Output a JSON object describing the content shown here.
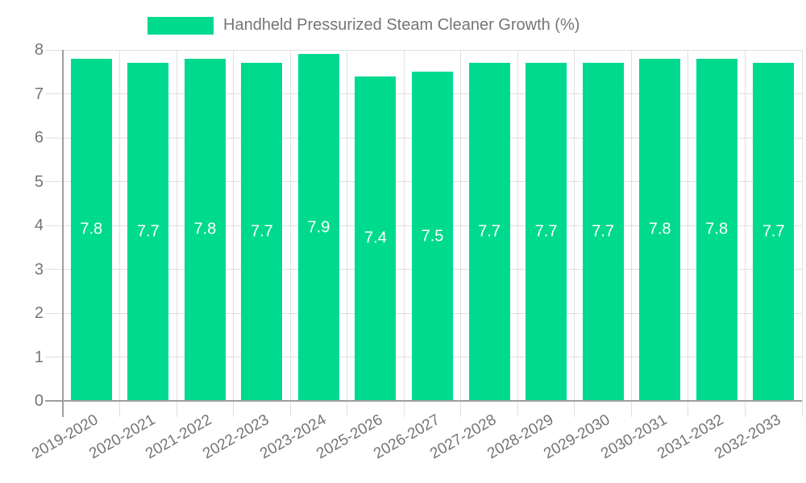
{
  "legend": {
    "label": "Handheld Pressurized Steam Cleaner Growth (%)"
  },
  "chart_data": {
    "type": "bar",
    "title": "Handheld Pressurized Steam Cleaner Growth (%)",
    "categories": [
      "2019-2020",
      "2020-2021",
      "2021-2022",
      "2022-2023",
      "2023-2024",
      "2025-2026",
      "2026-2027",
      "2027-2028",
      "2028-2029",
      "2029-2030",
      "2030-2031",
      "2031-2032",
      "2032-2033"
    ],
    "values": [
      7.8,
      7.7,
      7.8,
      7.7,
      7.9,
      7.4,
      7.5,
      7.7,
      7.7,
      7.7,
      7.8,
      7.8,
      7.7
    ],
    "value_labels": [
      "7.8",
      "7.7",
      "7.8",
      "7.7",
      "7.9",
      "7.4",
      "7.5",
      "7.7",
      "7.7",
      "7.7",
      "7.8",
      "7.8",
      "7.7"
    ],
    "xlabel": "",
    "ylabel": "",
    "ylim": [
      0,
      8
    ],
    "yticks": [
      0,
      1,
      2,
      3,
      4,
      5,
      6,
      7,
      8
    ],
    "grid": true,
    "legend_position": "top",
    "colors": {
      "bar": "#00DA8E",
      "value_label": "#ffffff",
      "axis_text": "#757575",
      "grid_line": "#e0e0e0",
      "axis_line": "#9e9e9e",
      "background": "#ffffff"
    }
  }
}
